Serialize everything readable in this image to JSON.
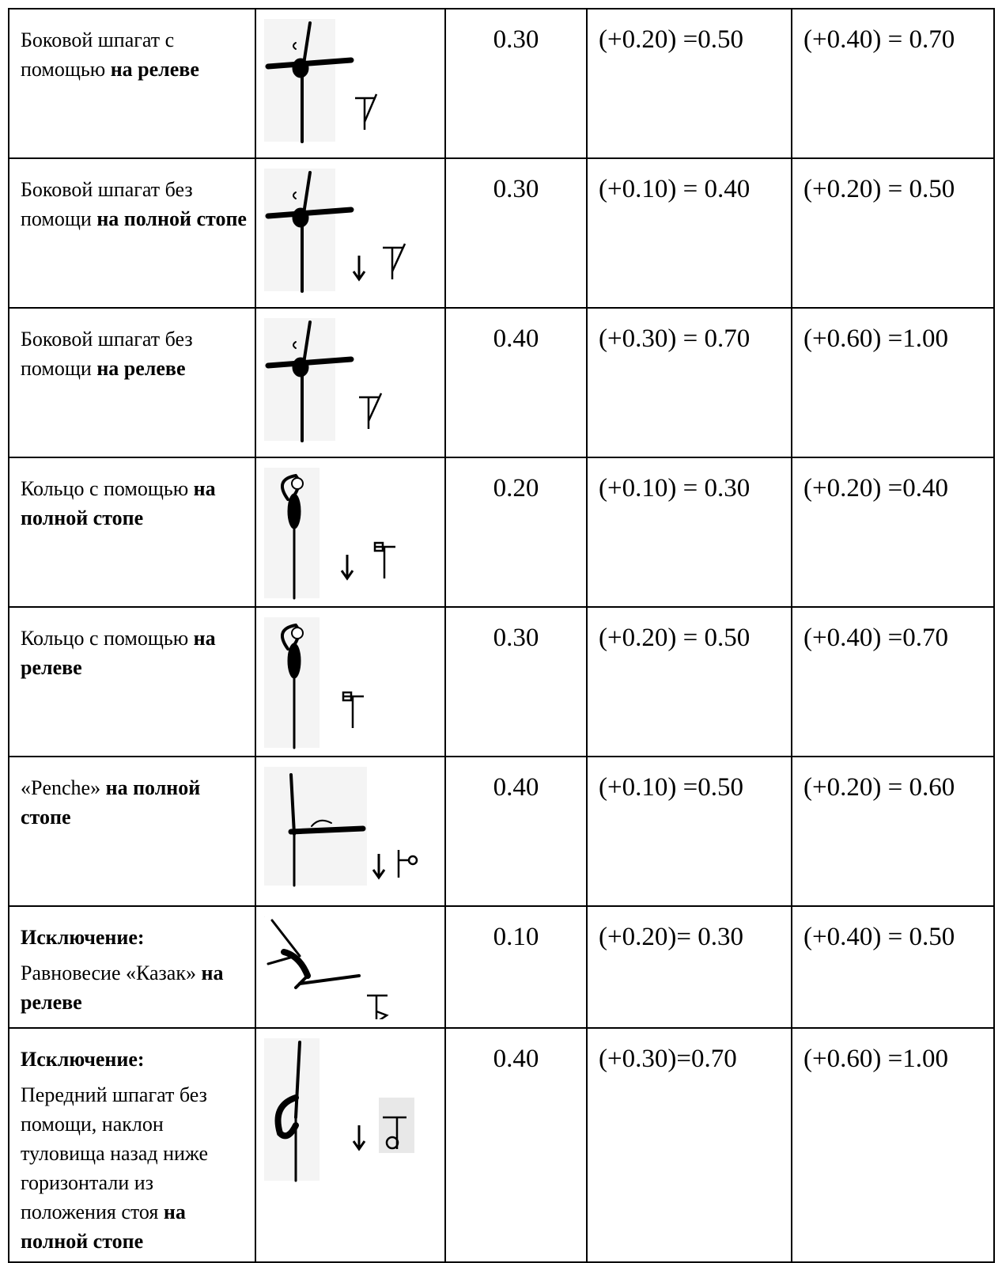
{
  "table": {
    "rows": [
      {
        "description": {
          "text": "Боковой шпагат с помощью",
          "bold_text": "на релеве"
        },
        "values": [
          "0.30",
          "(+0.20) =0.50",
          "(+0.40) = 0.70"
        ]
      },
      {
        "description": {
          "text": "Боковой шпагат без помощи",
          "bold_text": "на полной стопе"
        },
        "values": [
          "0.30",
          "(+0.10) = 0.40",
          "(+0.20) = 0.50"
        ]
      },
      {
        "description": {
          "text": "Боковой шпагат без помощи",
          "bold_text": "на релеве"
        },
        "values": [
          "0.40",
          "(+0.30) = 0.70",
          "(+0.60) =1.00"
        ]
      },
      {
        "description": {
          "text": "Кольцо с помощью",
          "bold_text": "на полной стопе"
        },
        "values": [
          "0.20",
          "(+0.10) = 0.30",
          "(+0.20) =0.40"
        ]
      },
      {
        "description": {
          "text": "Кольцо с помощью",
          "bold_text": "на релеве"
        },
        "values": [
          "0.30",
          "(+0.20) = 0.50",
          "(+0.40) =0.70"
        ]
      },
      {
        "description": {
          "text": "«Penche»",
          "bold_text": "на полной стопе"
        },
        "values": [
          "0.40",
          "(+0.10) =0.50",
          "(+0.20) = 0.60"
        ]
      },
      {
        "description": {
          "heading": "Исключение:",
          "text": "Равновесие «Казак»",
          "bold_text": "на релеве"
        },
        "values": [
          "0.10",
          "(+0.20)= 0.30",
          "(+0.40) = 0.50"
        ]
      },
      {
        "description": {
          "heading": "Исключение:",
          "text": "Передний шпагат без помощи, наклон туловища назад ниже горизонтали из положения стоя",
          "bold_text": "на полной стопе"
        },
        "values": [
          "0.40",
          "(+0.30)=0.70",
          "(+0.60) =1.00"
        ]
      }
    ]
  }
}
